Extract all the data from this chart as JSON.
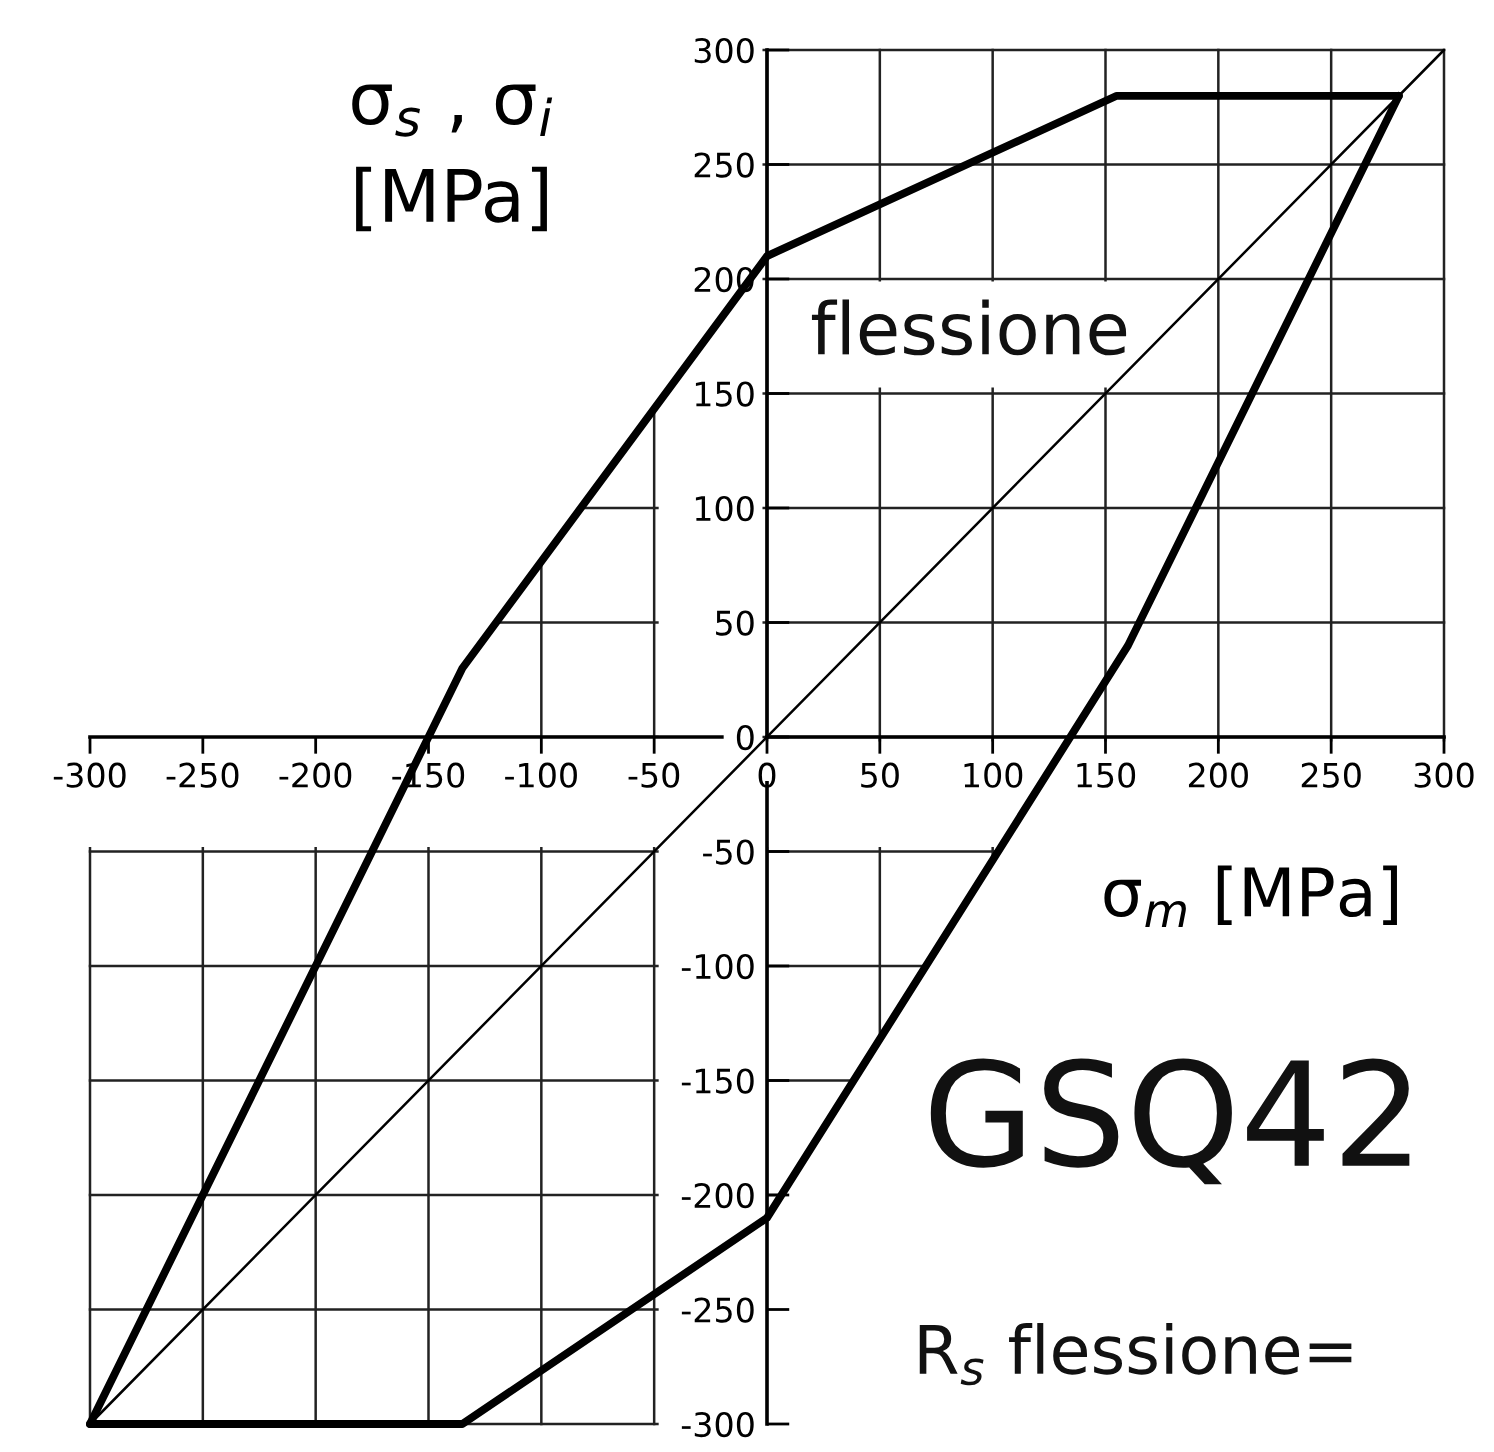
{
  "chart_data": {
    "type": "line",
    "title": "GSQ42",
    "xlabel": "σ$_{m}$ [MPa]",
    "ylabel": "σ$_{s}$ , σ$_{i}$\n[MPa]",
    "annotations": [
      "flessione",
      "R$_{s}$ flessione="
    ],
    "series": [
      {
        "color": "#000000",
        "x": [
          -300,
          -135,
          0,
          155,
          280
        ],
        "values": [
          -300,
          30,
          210,
          280,
          280
        ]
      },
      {
        "color": "#000000",
        "x": [
          280,
          160,
          0,
          -135,
          -300
        ],
        "values": [
          280,
          40,
          -210,
          -300,
          -300
        ]
      },
      {
        "color": "#000000",
        "x": [
          -300,
          300
        ],
        "values": [
          -300,
          300
        ]
      }
    ],
    "xlim": [
      -300,
      300
    ],
    "ylim": [
      -300,
      300
    ],
    "xticks": [
      -300,
      -250,
      -200,
      -150,
      -100,
      -50,
      0,
      50,
      100,
      150,
      200,
      250,
      300
    ],
    "yticks": [
      -300,
      -250,
      -200,
      -150,
      -100,
      -50,
      0,
      50,
      100,
      150,
      200,
      250,
      300
    ],
    "grid": true
  }
}
